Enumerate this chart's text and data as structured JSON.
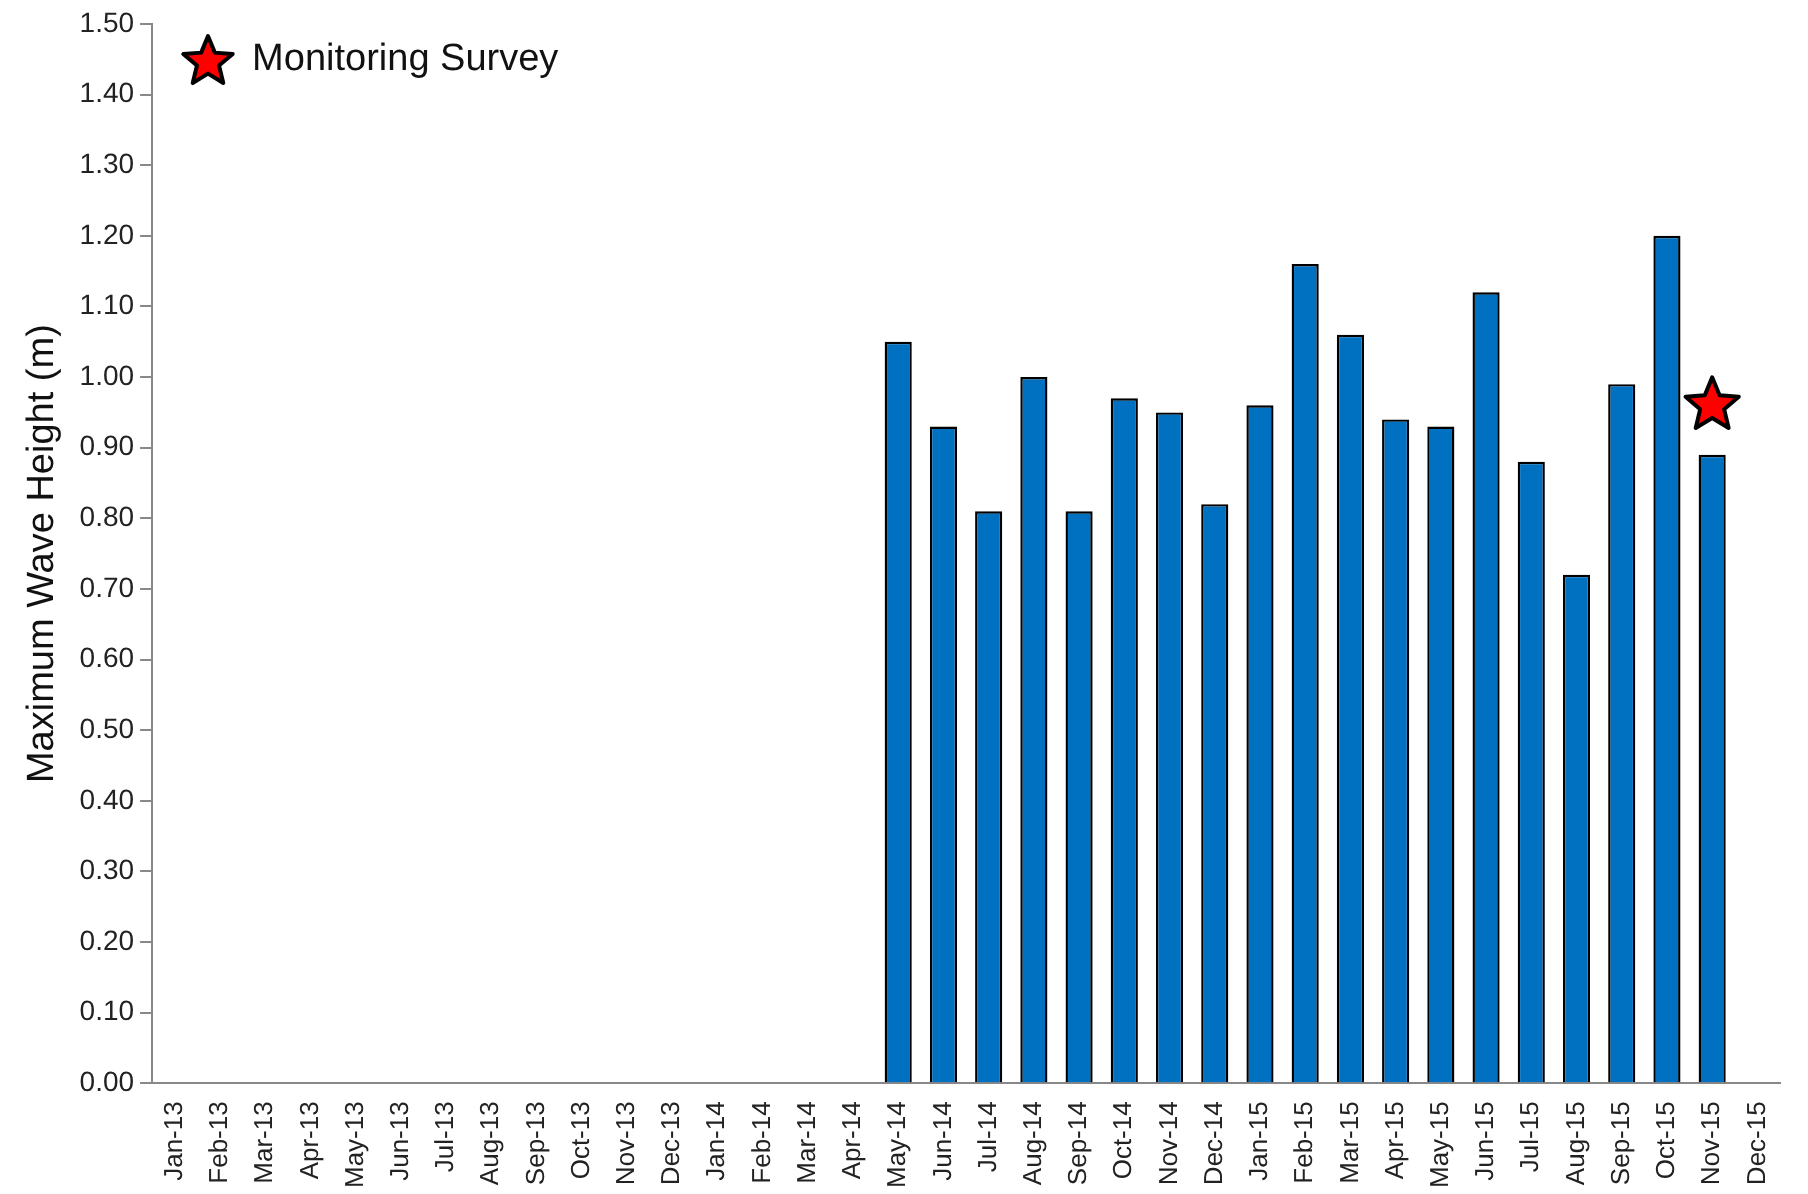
{
  "chart_data": {
    "type": "bar",
    "ylabel": "Maximum Wave Height (m)",
    "categories": [
      "Jan-13",
      "Feb-13",
      "Mar-13",
      "Apr-13",
      "May-13",
      "Jun-13",
      "Jul-13",
      "Aug-13",
      "Sep-13",
      "Oct-13",
      "Nov-13",
      "Dec-13",
      "Jan-14",
      "Feb-14",
      "Mar-14",
      "Apr-14",
      "May-14",
      "Jun-14",
      "Jul-14",
      "Aug-14",
      "Sep-14",
      "Oct-14",
      "Nov-14",
      "Dec-14",
      "Jan-15",
      "Feb-15",
      "Mar-15",
      "Apr-15",
      "May-15",
      "Jun-15",
      "Jul-15",
      "Aug-15",
      "Sep-15",
      "Oct-15",
      "Nov-15",
      "Dec-15"
    ],
    "series": [
      {
        "type": "bar",
        "color": "#0070c0",
        "values": [
          null,
          null,
          null,
          null,
          null,
          null,
          null,
          null,
          null,
          null,
          null,
          null,
          null,
          null,
          null,
          null,
          1.05,
          0.93,
          0.81,
          1.0,
          0.81,
          0.97,
          0.95,
          0.82,
          0.96,
          1.16,
          1.06,
          0.94,
          0.93,
          1.12,
          0.88,
          0.72,
          0.99,
          1.2,
          0.89,
          null
        ]
      },
      {
        "type": "scatter",
        "name": "Monitoring Survey",
        "color": "#ff0000",
        "marker": "star",
        "x": [
          "Nov-15"
        ],
        "values": [
          0.96
        ]
      }
    ],
    "ylim": [
      0,
      1.5
    ],
    "yticks": [
      {
        "value": 0,
        "label": "0.00"
      },
      {
        "value": 0.1,
        "label": "0.10"
      },
      {
        "value": 0.2,
        "label": "0.20"
      },
      {
        "value": 0.3,
        "label": "0.30"
      },
      {
        "value": 0.4,
        "label": "0.40"
      },
      {
        "value": 0.5,
        "label": "0.50"
      },
      {
        "value": 0.6,
        "label": "0.60"
      },
      {
        "value": 0.7,
        "label": "0.70"
      },
      {
        "value": 0.8,
        "label": "0.80"
      },
      {
        "value": 0.9,
        "label": "0.90"
      },
      {
        "value": 1.0,
        "label": "1.00"
      },
      {
        "value": 1.1,
        "label": "1.10"
      },
      {
        "value": 1.2,
        "label": "1.20"
      },
      {
        "value": 1.3,
        "label": "1.30"
      },
      {
        "value": 1.4,
        "label": "1.40"
      },
      {
        "value": 1.5,
        "label": "1.50"
      }
    ],
    "grid": false,
    "legend": "top left"
  }
}
